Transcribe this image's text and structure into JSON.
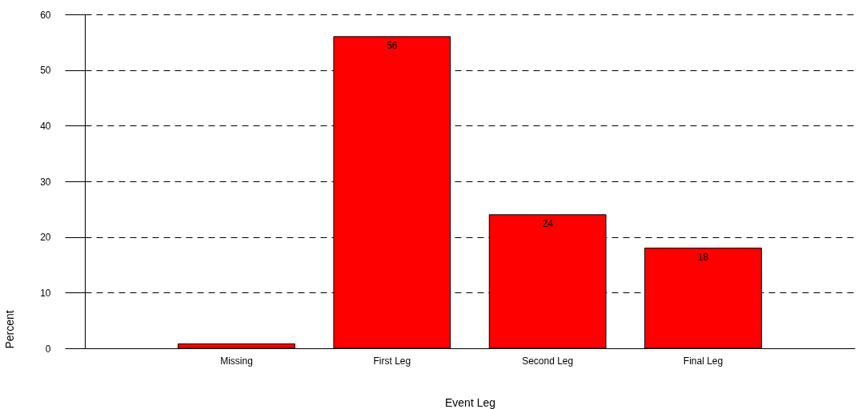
{
  "chart_data": {
    "type": "bar",
    "xlabel": "Event Leg",
    "ylabel": "Percent",
    "categories": [
      "Missing",
      "First Leg",
      "Second Leg",
      "Final Leg"
    ],
    "values": [
      0.8,
      56,
      24,
      18
    ],
    "value_labels": [
      null,
      "56",
      "24",
      "18"
    ],
    "color": "#ff0000",
    "ylim": [
      0,
      60
    ],
    "yticks": [
      0,
      10,
      20,
      30,
      40,
      50,
      60
    ],
    "grid": "y"
  }
}
